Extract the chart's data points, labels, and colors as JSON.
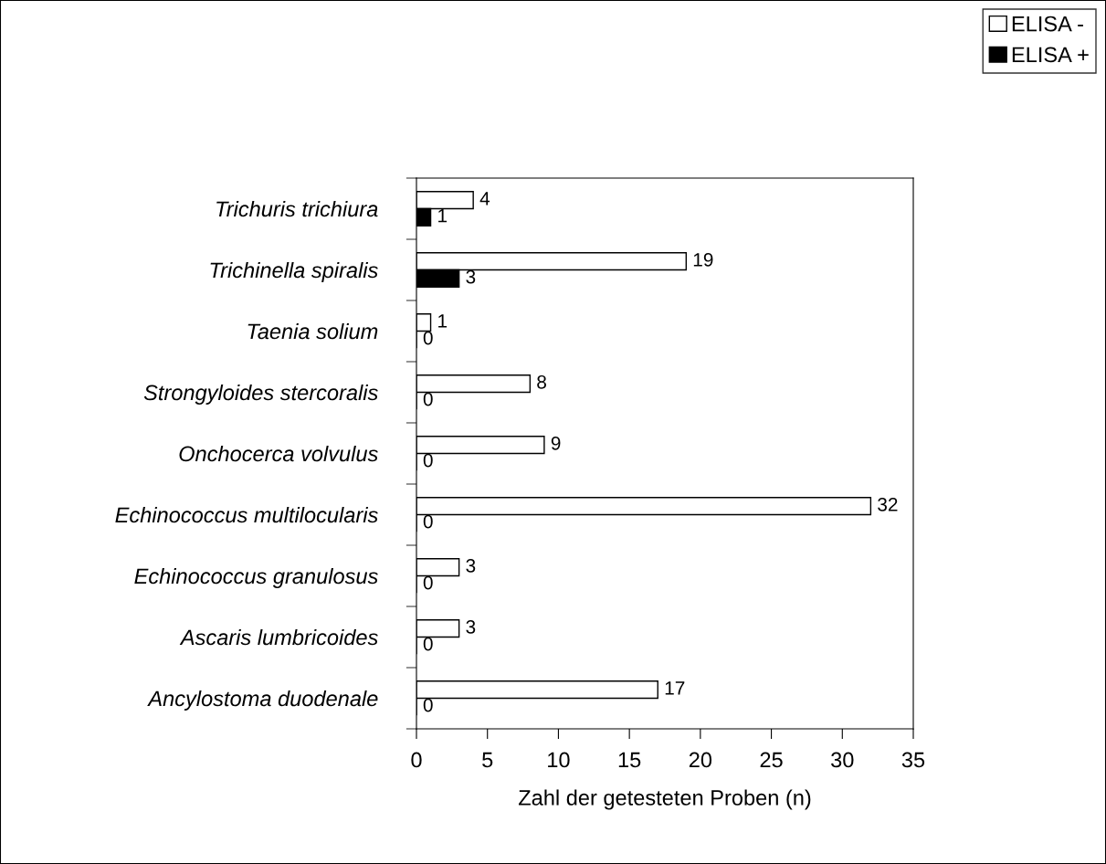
{
  "chart_data": {
    "type": "bar",
    "orientation": "horizontal",
    "xlabel": "Zahl der getesteten Proben (n)",
    "categories": [
      "Trichuris trichiura",
      "Trichinella spiralis",
      "Taenia solium",
      "Strongyloides stercoralis",
      "Onchocerca volvulus",
      "Echinococcus multilocularis",
      "Echinococcus granulosus",
      "Ascaris lumbricoides",
      "Ancylostoma duodenale"
    ],
    "series": [
      {
        "name": "ELISA -",
        "color": "#ffffff",
        "values": [
          4,
          19,
          1,
          8,
          9,
          32,
          3,
          3,
          17
        ]
      },
      {
        "name": "ELISA +",
        "color": "#000000",
        "values": [
          1,
          3,
          0,
          0,
          0,
          0,
          0,
          0,
          0
        ]
      }
    ],
    "xlim": [
      0,
      35
    ],
    "xticks": [
      0,
      5,
      10,
      15,
      20,
      25,
      30,
      35
    ],
    "data_labels": true,
    "legend": "top right",
    "grid": false
  }
}
